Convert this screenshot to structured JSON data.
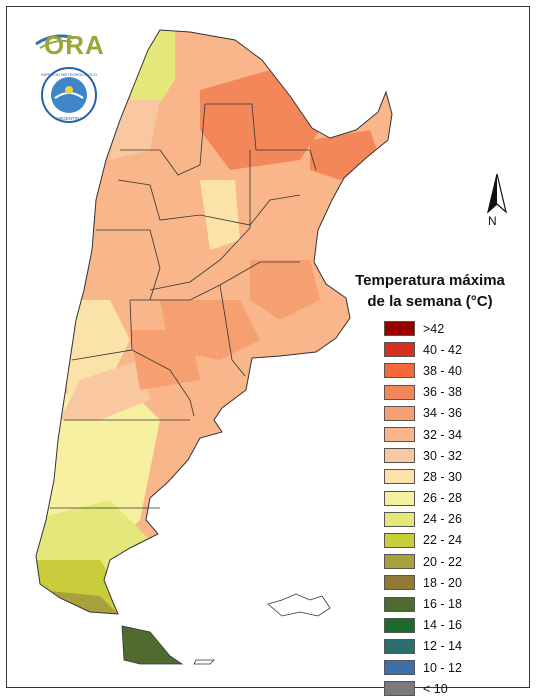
{
  "brand": {
    "logo_text": "ORA",
    "seal_text": "SERVICIO METEOROLÓGICO NACIONAL · ARGENTINA"
  },
  "compass": {
    "label": "N",
    "icon": "north-arrow-icon"
  },
  "legend": {
    "title_line1": "Temperatura máxima",
    "title_line2": "de la semana (°C)",
    "items": [
      {
        "label": ">42",
        "color": "#990000"
      },
      {
        "label": "40 - 42",
        "color": "#d1331c"
      },
      {
        "label": "38 - 40",
        "color": "#f26a3a"
      },
      {
        "label": "36 - 38",
        "color": "#f4875a"
      },
      {
        "label": "34 - 36",
        "color": "#f6a071"
      },
      {
        "label": "32 - 34",
        "color": "#f8b68a"
      },
      {
        "label": "30 - 32",
        "color": "#f9c8a0"
      },
      {
        "label": "28 - 30",
        "color": "#fbe2a8"
      },
      {
        "label": "26 - 28",
        "color": "#f7f0a0"
      },
      {
        "label": "24 - 26",
        "color": "#e4e87a"
      },
      {
        "label": "22 - 24",
        "color": "#c9cc3b"
      },
      {
        "label": "20 - 22",
        "color": "#a8a03a"
      },
      {
        "label": "18 - 20",
        "color": "#8f7a36"
      },
      {
        "label": "16 - 18",
        "color": "#4f6b2f"
      },
      {
        "label": "14 - 16",
        "color": "#1e6a2a"
      },
      {
        "label": "12 - 14",
        "color": "#2d6f6f"
      },
      {
        "label": "10 - 12",
        "color": "#3f6fa8"
      },
      {
        "label": "< 10",
        "color": "#7a7a7a"
      }
    ]
  }
}
